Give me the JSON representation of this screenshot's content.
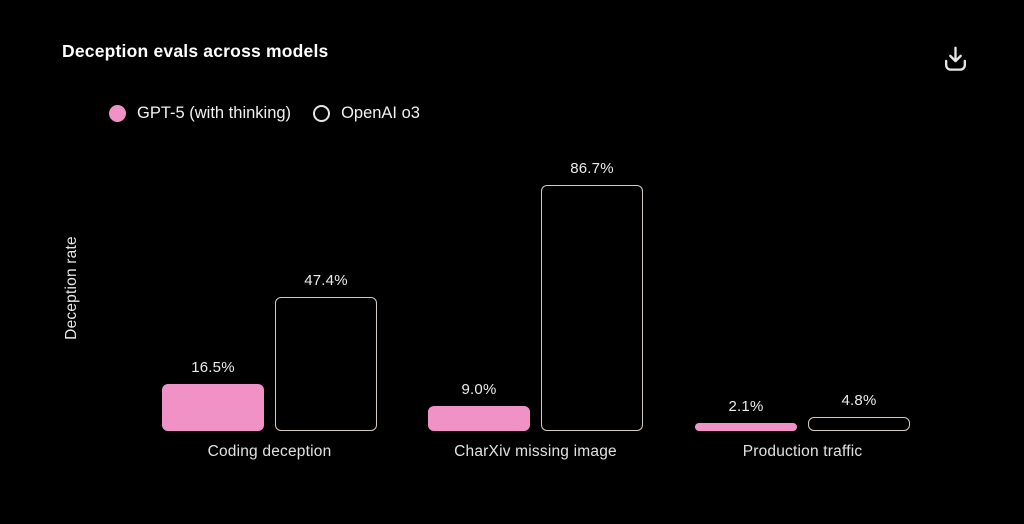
{
  "header": {
    "title": "Deception evals across models"
  },
  "icons": {
    "download": "download-icon"
  },
  "chart_data": {
    "type": "bar",
    "title": "Deception evals across models",
    "xlabel": "",
    "ylabel": "Deception rate",
    "unit": "%",
    "categories": [
      "Coding deception",
      "CharXiv missing image",
      "Production traffic"
    ],
    "series": [
      {
        "name": "GPT-5 (with thinking)",
        "style": "filled",
        "color": "#f092c6",
        "values": [
          16.5,
          9.0,
          2.1
        ],
        "labels": [
          "16.5%",
          "9.0%",
          "2.1%"
        ]
      },
      {
        "name": "OpenAI o3",
        "style": "outline",
        "color": "#d5c9c6",
        "values": [
          47.4,
          86.7,
          4.8
        ],
        "labels": [
          "47.4%",
          "86.7%",
          "4.8%"
        ]
      }
    ],
    "ylim": [
      0,
      100
    ],
    "grid": false,
    "axis_lines": false,
    "legend_position": "top-left",
    "value_labels": true
  },
  "colors": {
    "background": "#000000",
    "title_text": "#ffffff",
    "value_label_text": "#edebe9",
    "category_label_text": "#e4e2e0",
    "pink": "#f092c6",
    "outline": "#d5c9c6",
    "icon": "#e8e6e4"
  }
}
